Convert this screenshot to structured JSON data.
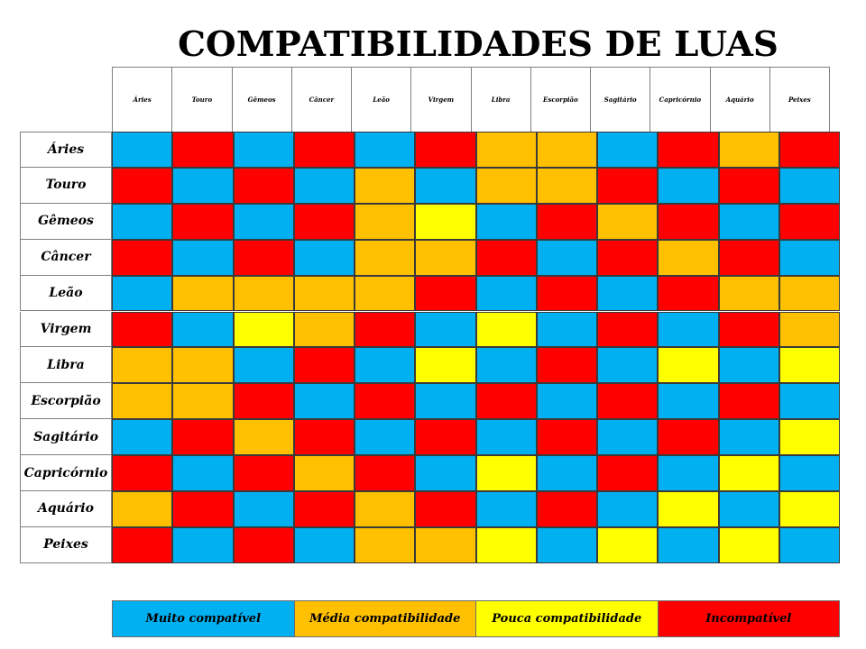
{
  "title": "COMPATIBILIDADES DE LUAS",
  "colors": {
    "B": "#00B0F0",
    "O": "#FFC000",
    "Y": "#FFFF00",
    "R": "#FF0000"
  },
  "columns": [
    "Áries",
    "Touro",
    "Gêmeos",
    "Câncer",
    "Leão",
    "Virgem",
    "Libra",
    "Escorpião",
    "Sagitário",
    "Capricórnio",
    "Aquário",
    "Peixes"
  ],
  "rows": [
    {
      "label": "Áries",
      "cells": [
        "B",
        "R",
        "B",
        "R",
        "B",
        "R",
        "O",
        "O",
        "B",
        "R",
        "O",
        "R"
      ]
    },
    {
      "label": "Touro",
      "cells": [
        "R",
        "B",
        "R",
        "B",
        "O",
        "B",
        "O",
        "O",
        "R",
        "B",
        "R",
        "B"
      ]
    },
    {
      "label": "Gêmeos",
      "cells": [
        "B",
        "R",
        "B",
        "R",
        "O",
        "Y",
        "B",
        "R",
        "O",
        "R",
        "B",
        "R"
      ]
    },
    {
      "label": "Câncer",
      "cells": [
        "R",
        "B",
        "R",
        "B",
        "O",
        "O",
        "R",
        "B",
        "R",
        "O",
        "R",
        "B"
      ]
    },
    {
      "label": "Leão",
      "cells": [
        "B",
        "O",
        "O",
        "O",
        "O",
        "R",
        "B",
        "R",
        "B",
        "R",
        "O",
        "O"
      ]
    },
    {
      "label": "Virgem",
      "cells": [
        "R",
        "B",
        "Y",
        "O",
        "R",
        "B",
        "Y",
        "B",
        "R",
        "B",
        "R",
        "O"
      ]
    },
    {
      "label": "Libra",
      "cells": [
        "O",
        "O",
        "B",
        "R",
        "B",
        "Y",
        "B",
        "R",
        "B",
        "Y",
        "B",
        "Y"
      ]
    },
    {
      "label": "Escorpião",
      "cells": [
        "O",
        "O",
        "R",
        "B",
        "R",
        "B",
        "R",
        "B",
        "R",
        "B",
        "R",
        "B"
      ]
    },
    {
      "label": "Sagitário",
      "cells": [
        "B",
        "R",
        "O",
        "R",
        "B",
        "R",
        "B",
        "R",
        "B",
        "R",
        "B",
        "Y"
      ]
    },
    {
      "label": "Capricórnio",
      "cells": [
        "R",
        "B",
        "R",
        "O",
        "R",
        "B",
        "Y",
        "B",
        "R",
        "B",
        "Y",
        "B"
      ]
    },
    {
      "label": "Aquário",
      "cells": [
        "O",
        "R",
        "B",
        "R",
        "O",
        "R",
        "B",
        "R",
        "B",
        "Y",
        "B",
        "Y"
      ]
    },
    {
      "label": "Peixes",
      "cells": [
        "R",
        "B",
        "R",
        "B",
        "O",
        "O",
        "Y",
        "B",
        "Y",
        "B",
        "Y",
        "B"
      ]
    }
  ],
  "legend": [
    {
      "key": "B",
      "label": "Muito compatível",
      "color": "#00B0F0"
    },
    {
      "key": "O",
      "label": "Média compatibilidade",
      "color": "#FFC000"
    },
    {
      "key": "Y",
      "label": "Pouca compatibilidade",
      "color": "#FFFF00"
    },
    {
      "key": "R",
      "label": "Incompatível",
      "color": "#FF0000"
    }
  ],
  "chart_data": {
    "type": "heatmap",
    "title": "COMPATIBILIDADES DE LUAS",
    "x": [
      "Áries",
      "Touro",
      "Gêmeos",
      "Câncer",
      "Leão",
      "Virgem",
      "Libra",
      "Escorpião",
      "Sagitário",
      "Capricórnio",
      "Aquário",
      "Peixes"
    ],
    "y": [
      "Áries",
      "Touro",
      "Gêmeos",
      "Câncer",
      "Leão",
      "Virgem",
      "Libra",
      "Escorpião",
      "Sagitário",
      "Capricórnio",
      "Aquário",
      "Peixes"
    ],
    "scale": {
      "B": "Muito compatível",
      "O": "Média compatibilidade",
      "Y": "Pouca compatibilidade",
      "R": "Incompatível"
    },
    "values": [
      [
        "B",
        "R",
        "B",
        "R",
        "B",
        "R",
        "O",
        "O",
        "B",
        "R",
        "O",
        "R"
      ],
      [
        "R",
        "B",
        "R",
        "B",
        "O",
        "B",
        "O",
        "O",
        "R",
        "B",
        "R",
        "B"
      ],
      [
        "B",
        "R",
        "B",
        "R",
        "O",
        "Y",
        "B",
        "R",
        "O",
        "R",
        "B",
        "R"
      ],
      [
        "R",
        "B",
        "R",
        "B",
        "O",
        "O",
        "R",
        "B",
        "R",
        "O",
        "R",
        "B"
      ],
      [
        "B",
        "O",
        "O",
        "O",
        "O",
        "R",
        "B",
        "R",
        "B",
        "R",
        "O",
        "O"
      ],
      [
        "R",
        "B",
        "Y",
        "O",
        "R",
        "B",
        "Y",
        "B",
        "R",
        "B",
        "R",
        "O"
      ],
      [
        "O",
        "O",
        "B",
        "R",
        "B",
        "Y",
        "B",
        "R",
        "B",
        "Y",
        "B",
        "Y"
      ],
      [
        "O",
        "O",
        "R",
        "B",
        "R",
        "B",
        "R",
        "B",
        "R",
        "B",
        "R",
        "B"
      ],
      [
        "B",
        "R",
        "O",
        "R",
        "B",
        "R",
        "B",
        "R",
        "B",
        "R",
        "B",
        "Y"
      ],
      [
        "R",
        "B",
        "R",
        "O",
        "R",
        "B",
        "Y",
        "B",
        "R",
        "B",
        "Y",
        "B"
      ],
      [
        "O",
        "R",
        "B",
        "R",
        "O",
        "R",
        "B",
        "R",
        "B",
        "Y",
        "B",
        "Y"
      ],
      [
        "R",
        "B",
        "R",
        "B",
        "O",
        "O",
        "Y",
        "B",
        "Y",
        "B",
        "Y",
        "B"
      ]
    ],
    "legend_position": "bottom"
  }
}
